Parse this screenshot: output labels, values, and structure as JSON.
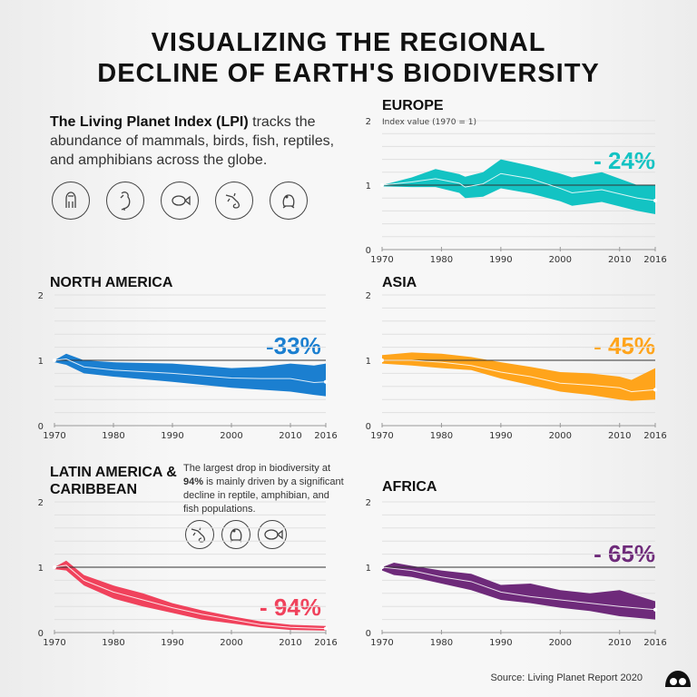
{
  "title_line1": "VISUALIZING THE REGIONAL",
  "title_line2": "DECLINE OF EARTH'S BIODIVERSITY",
  "intro": {
    "bold": "The Living Planet Index (LPI)",
    "rest": " tracks the abundance of mammals, birds, fish, reptiles, and amphibians across the globe."
  },
  "intro_icons": [
    "gorilla-icon",
    "parrot-icon",
    "fish-icon",
    "lizard-icon",
    "frog-icon"
  ],
  "note": {
    "pre": "The largest drop in biodiversity at ",
    "bold": "94%",
    "post": " is mainly driven by a significant decline in reptile, amphibian, and fish populations."
  },
  "note_icons": [
    "lizard-icon",
    "frog-icon",
    "fish-icon"
  ],
  "source": "Source: Living Planet Report 2020",
  "chart_data": [
    {
      "type": "area",
      "region": "EUROPE",
      "change": "- 24%",
      "color": "#13c3c3",
      "ylabel": "Index value (1970 = 1)",
      "ylim": [
        0,
        2
      ],
      "yticks": [
        0,
        1,
        2
      ],
      "xlim": [
        1970,
        2016
      ],
      "xticks": [
        1970,
        1980,
        1990,
        2000,
        2010,
        2016
      ],
      "grid": true,
      "x": [
        1970,
        1975,
        1979,
        1983,
        1984,
        1987,
        1990,
        1995,
        2000,
        2002,
        2007,
        2013,
        2016
      ],
      "index": [
        1.0,
        1.05,
        1.1,
        1.03,
        0.97,
        1.02,
        1.18,
        1.1,
        0.95,
        0.88,
        0.93,
        0.8,
        0.76
      ],
      "upper": [
        1.0,
        1.12,
        1.25,
        1.17,
        1.13,
        1.2,
        1.4,
        1.3,
        1.18,
        1.12,
        1.2,
        1.0,
        1.0
      ],
      "lower": [
        0.98,
        0.97,
        0.97,
        0.88,
        0.8,
        0.82,
        0.95,
        0.87,
        0.75,
        0.68,
        0.74,
        0.6,
        0.55
      ]
    },
    {
      "type": "area",
      "region": "NORTH AMERICA",
      "change": "-33%",
      "color": "#1b7fd0",
      "ylim": [
        0,
        2
      ],
      "yticks": [
        0,
        1,
        2
      ],
      "xlim": [
        1970,
        2016
      ],
      "xticks": [
        1970,
        1980,
        1990,
        2000,
        2010,
        2016
      ],
      "grid": true,
      "x": [
        1970,
        1972,
        1975,
        1980,
        1990,
        2000,
        2005,
        2010,
        2014,
        2016
      ],
      "index": [
        1.0,
        1.02,
        0.9,
        0.85,
        0.8,
        0.73,
        0.72,
        0.72,
        0.66,
        0.67
      ],
      "upper": [
        1.0,
        1.1,
        1.0,
        0.97,
        0.95,
        0.88,
        0.9,
        0.95,
        0.92,
        0.95
      ],
      "lower": [
        0.97,
        0.93,
        0.8,
        0.75,
        0.67,
        0.58,
        0.55,
        0.52,
        0.47,
        0.45
      ]
    },
    {
      "type": "area",
      "region": "ASIA",
      "change": "- 45%",
      "color": "#ffa41b",
      "ylim": [
        0,
        2
      ],
      "yticks": [
        0,
        1,
        2
      ],
      "xlim": [
        1970,
        2016
      ],
      "xticks": [
        1970,
        1980,
        1990,
        2000,
        2010,
        2016
      ],
      "grid": true,
      "x": [
        1970,
        1975,
        1980,
        1985,
        1990,
        1995,
        2000,
        2005,
        2010,
        2012,
        2016
      ],
      "index": [
        1.0,
        1.0,
        0.97,
        0.92,
        0.82,
        0.75,
        0.65,
        0.62,
        0.58,
        0.52,
        0.55
      ],
      "upper": [
        1.08,
        1.12,
        1.1,
        1.05,
        0.97,
        0.9,
        0.82,
        0.8,
        0.75,
        0.7,
        0.88
      ],
      "lower": [
        0.95,
        0.92,
        0.88,
        0.85,
        0.72,
        0.62,
        0.52,
        0.47,
        0.4,
        0.38,
        0.4
      ]
    },
    {
      "type": "area",
      "region": "LATIN AMERICA & CARIBBEAN",
      "change": "- 94%",
      "color": "#f0425c",
      "ylim": [
        0,
        2
      ],
      "yticks": [
        0,
        1,
        2
      ],
      "xlim": [
        1970,
        2016
      ],
      "xticks": [
        1970,
        1980,
        1990,
        2000,
        2010,
        2016
      ],
      "grid": true,
      "x": [
        1970,
        1972,
        1975,
        1980,
        1985,
        1990,
        1995,
        2000,
        2005,
        2010,
        2016
      ],
      "index": [
        1.0,
        1.03,
        0.8,
        0.62,
        0.5,
        0.38,
        0.28,
        0.2,
        0.12,
        0.08,
        0.06
      ],
      "upper": [
        1.0,
        1.1,
        0.88,
        0.72,
        0.6,
        0.45,
        0.34,
        0.25,
        0.17,
        0.12,
        0.1
      ],
      "lower": [
        0.97,
        0.95,
        0.72,
        0.52,
        0.4,
        0.3,
        0.2,
        0.14,
        0.08,
        0.04,
        0.03
      ]
    },
    {
      "type": "area",
      "region": "AFRICA",
      "change": "- 65%",
      "color": "#6e2a7a",
      "ylim": [
        0,
        2
      ],
      "yticks": [
        0,
        1,
        2
      ],
      "xlim": [
        1970,
        2016
      ],
      "xticks": [
        1970,
        1980,
        1990,
        2000,
        2010,
        2016
      ],
      "grid": true,
      "x": [
        1970,
        1972,
        1975,
        1980,
        1985,
        1990,
        1995,
        2000,
        2005,
        2010,
        2016
      ],
      "index": [
        1.0,
        0.98,
        0.95,
        0.85,
        0.78,
        0.62,
        0.55,
        0.5,
        0.45,
        0.4,
        0.35
      ],
      "upper": [
        1.0,
        1.07,
        1.02,
        0.95,
        0.9,
        0.73,
        0.75,
        0.65,
        0.6,
        0.65,
        0.48
      ],
      "lower": [
        0.95,
        0.88,
        0.85,
        0.75,
        0.65,
        0.5,
        0.45,
        0.38,
        0.33,
        0.25,
        0.2
      ]
    }
  ]
}
